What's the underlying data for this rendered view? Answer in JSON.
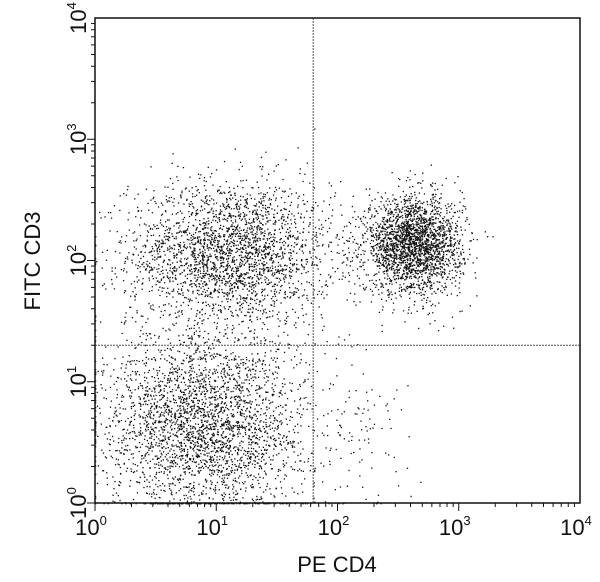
{
  "chart_data": {
    "type": "scatter",
    "title": "",
    "xlabel": "PE CD4",
    "ylabel": "FITC CD3",
    "x_scale": "log",
    "y_scale": "log",
    "xlim": [
      1,
      10000
    ],
    "ylim": [
      1,
      10000
    ],
    "x_ticks": [
      {
        "base": "10",
        "exp": "0"
      },
      {
        "base": "10",
        "exp": "1"
      },
      {
        "base": "10",
        "exp": "2"
      },
      {
        "base": "10",
        "exp": "3"
      },
      {
        "base": "10",
        "exp": "4"
      }
    ],
    "y_ticks": [
      {
        "base": "10",
        "exp": "0"
      },
      {
        "base": "10",
        "exp": "1"
      },
      {
        "base": "10",
        "exp": "2"
      },
      {
        "base": "10",
        "exp": "3"
      },
      {
        "base": "10",
        "exp": "4"
      }
    ],
    "quadrant_gates": {
      "x": 63,
      "y": 20
    },
    "grid": false,
    "point_color": "#111111",
    "populations": [
      {
        "quadrant": "upper-left",
        "center": [
          13,
          115
        ],
        "spread_decades": [
          0.42,
          0.3
        ],
        "count": 2600
      },
      {
        "quadrant": "upper-right",
        "center": [
          420,
          135
        ],
        "spread_decades": [
          0.2,
          0.2
        ],
        "count": 2400
      },
      {
        "quadrant": "lower-left",
        "center": [
          8,
          4.5
        ],
        "spread_decades": [
          0.42,
          0.38
        ],
        "count": 3000
      },
      {
        "quadrant": "lower-right",
        "center": [
          150,
          4
        ],
        "spread_decades": [
          0.25,
          0.35
        ],
        "count": 90
      }
    ]
  }
}
